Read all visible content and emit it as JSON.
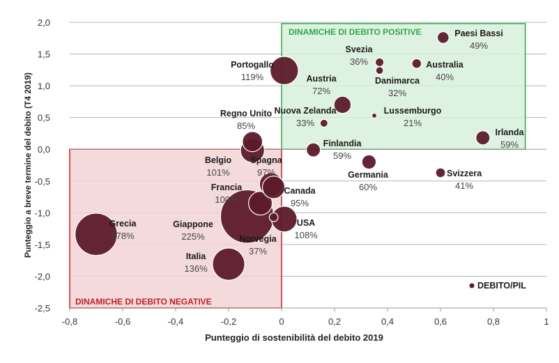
{
  "chart_data": {
    "type": "scatter",
    "subtype": "bubble",
    "xlabel": "Punteggio di sostenibilità del debito 2019",
    "ylabel": "Punteggio a breve termine del debito (T4 2019)",
    "xlim": [
      -0.8,
      1.0
    ],
    "ylim": [
      -2.5,
      2.0
    ],
    "x_ticks": [
      -0.8,
      -0.6,
      -0.4,
      -0.2,
      0,
      0.2,
      0.4,
      0.6,
      0.8,
      1.0
    ],
    "x_tick_labels": [
      "-0,8",
      "-0,6",
      "-0,4",
      "-0,2",
      "0",
      "0,2",
      "0,4",
      "0,6",
      "0,8",
      "1"
    ],
    "y_ticks": [
      2.0,
      1.5,
      1.0,
      0.5,
      0.0,
      -0.5,
      -1.0,
      -1.5,
      -2.0,
      -2.5
    ],
    "y_tick_labels": [
      "2,0",
      "1,5",
      "1,0",
      "0,5",
      "0,0",
      "-0,5",
      "-1,0",
      "-1,5",
      "-2,0",
      "-2,5"
    ],
    "grid": "horizontal",
    "bubble_size_legend": "DEBITO/PIL",
    "regions": [
      {
        "label": "DINAMICHE DI DEBITO POSITIVE",
        "x_range": [
          0,
          0.92
        ],
        "y_range": [
          0,
          1.98
        ],
        "color": "#2ea84a",
        "fill": "#d8f0dc"
      },
      {
        "label": "DINAMICHE DI DEBITO NEGATIVE",
        "x_range": [
          -0.8,
          0
        ],
        "y_range": [
          -2.5,
          0
        ],
        "color": "#c0202a",
        "fill": "#f2d3d3"
      }
    ],
    "points": [
      {
        "name": "Paesi Bassi",
        "value": "49%",
        "debt": 49,
        "x": 0.61,
        "y": 1.76
      },
      {
        "name": "Svezia",
        "value": "36%",
        "debt": 36,
        "x": 0.37,
        "y": 1.37
      },
      {
        "name": "Australia",
        "value": "40%",
        "debt": 40,
        "x": 0.51,
        "y": 1.35
      },
      {
        "name": "Danimarca",
        "value": "32%",
        "debt": 32,
        "x": 0.37,
        "y": 1.24
      },
      {
        "name": "Portogallo",
        "value": "119%",
        "debt": 119,
        "x": 0.01,
        "y": 1.24
      },
      {
        "name": "Austria",
        "value": "72%",
        "debt": 72,
        "x": 0.23,
        "y": 0.7
      },
      {
        "name": "Lussemburgo",
        "value": "21%",
        "debt": 21,
        "x": 0.35,
        "y": 0.53
      },
      {
        "name": "Nuova Zelanda",
        "value": "33%",
        "debt": 33,
        "x": 0.16,
        "y": 0.41
      },
      {
        "name": "Regno Unito",
        "value": "85%",
        "debt": 85,
        "x": -0.11,
        "y": 0.12
      },
      {
        "name": "Irlanda",
        "value": "59%",
        "debt": 59,
        "x": 0.76,
        "y": 0.18
      },
      {
        "name": "Finlandia",
        "value": "59%",
        "debt": 59,
        "x": 0.12,
        "y": -0.01
      },
      {
        "name": "Belgio",
        "value": "101%",
        "debt": 101,
        "x": -0.11,
        "y": -0.02
      },
      {
        "name": "Germania",
        "value": "60%",
        "debt": 60,
        "x": 0.33,
        "y": -0.2
      },
      {
        "name": "Svizzera",
        "value": "41%",
        "debt": 41,
        "x": 0.6,
        "y": -0.37
      },
      {
        "name": "Spagna",
        "value": "97%",
        "debt": 97,
        "x": -0.04,
        "y": -0.55
      },
      {
        "name": "Canada",
        "value": "95%",
        "debt": 95,
        "x": -0.03,
        "y": -0.6
      },
      {
        "name": "Francia",
        "value": "100%",
        "debt": 100,
        "x": -0.08,
        "y": -0.85
      },
      {
        "name": "Giappone",
        "value": "225%",
        "debt": 225,
        "x": -0.13,
        "y": -1.06
      },
      {
        "name": "Norvegia",
        "value": "37%",
        "debt": 37,
        "x": -0.03,
        "y": -1.07
      },
      {
        "name": "USA",
        "value": "108%",
        "debt": 108,
        "x": 0.01,
        "y": -1.1
      },
      {
        "name": "Grecia",
        "value": "178%",
        "debt": 178,
        "x": -0.7,
        "y": -1.34
      },
      {
        "name": "Italia",
        "value": "136%",
        "debt": 136,
        "x": -0.2,
        "y": -1.81
      }
    ],
    "point_color": "#5c1a2a"
  }
}
